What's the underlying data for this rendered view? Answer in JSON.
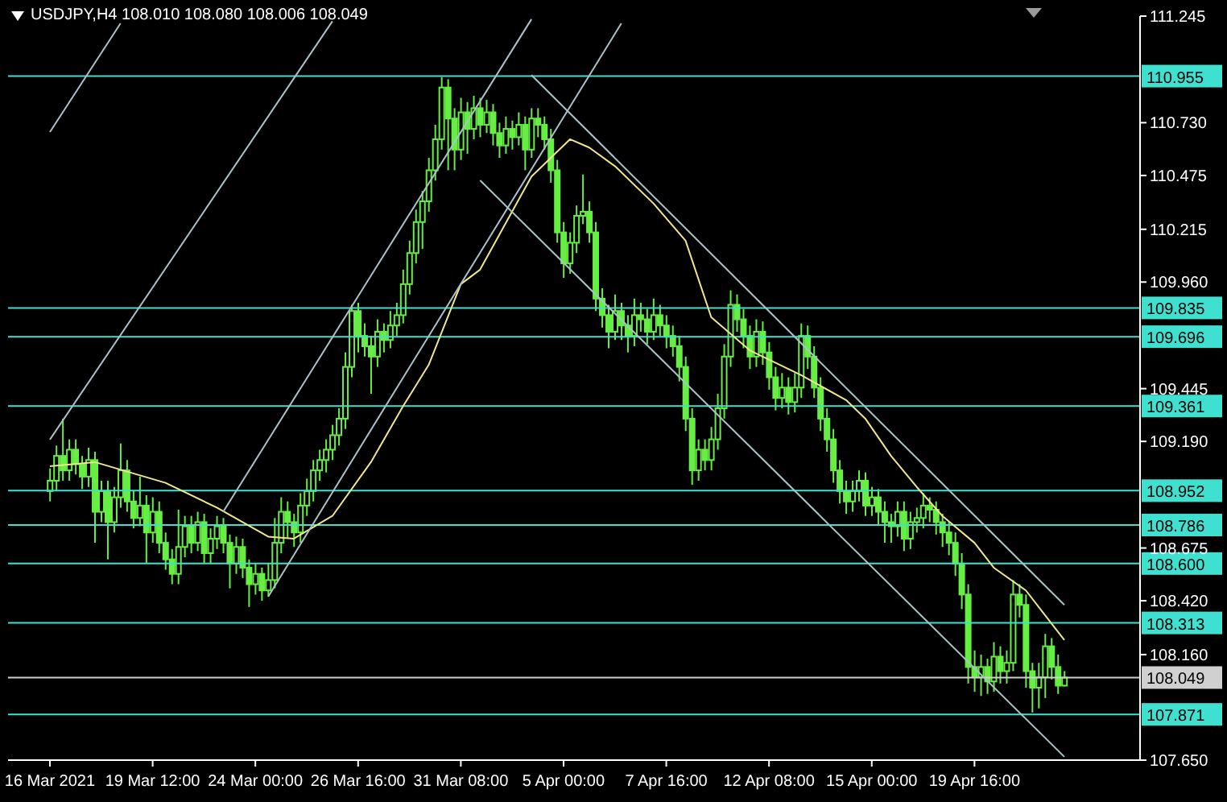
{
  "chart_data": {
    "type": "candlestick",
    "title": "USDJPY,H4 108.010 108.080 108.006 108.049",
    "categories": [
      "16 Mar 2021",
      null,
      null,
      null,
      null,
      null,
      null,
      null,
      null,
      null,
      null,
      null,
      null,
      null,
      null,
      null,
      "19 Mar 12:00",
      null,
      null,
      null,
      null,
      null,
      null,
      null,
      null,
      null,
      null,
      null,
      null,
      null,
      null,
      null,
      "24 Mar 00:00",
      null,
      null,
      null,
      null,
      null,
      null,
      null,
      null,
      null,
      null,
      null,
      null,
      null,
      null,
      null,
      "26 Mar 16:00",
      null,
      null,
      null,
      null,
      null,
      null,
      null,
      null,
      null,
      null,
      null,
      null,
      null,
      null,
      null,
      "31 Mar 08:00",
      null,
      null,
      null,
      null,
      null,
      null,
      null,
      null,
      null,
      null,
      null,
      null,
      null,
      null,
      null,
      "5 Apr 00:00",
      null,
      null,
      null,
      null,
      null,
      null,
      null,
      null,
      null,
      null,
      null,
      null,
      null,
      null,
      null,
      "7 Apr 16:00",
      null,
      null,
      null,
      null,
      null,
      null,
      null,
      null,
      null,
      null,
      null,
      null,
      null,
      null,
      null,
      "12 Apr 08:00",
      null,
      null,
      null,
      null,
      null,
      null,
      null,
      null,
      null,
      null,
      null,
      null,
      null,
      null,
      null,
      "15 Apr 00:00",
      null,
      null,
      null,
      null,
      null,
      null,
      null,
      null,
      null,
      null,
      null,
      null,
      null,
      null,
      null,
      "19 Apr 16:00",
      null,
      null,
      null,
      null,
      null,
      null,
      null,
      null,
      null,
      null,
      null,
      null,
      null,
      null
    ],
    "ylim": [
      107.65,
      111.245
    ],
    "yticks": [
      {
        "value": 107.65,
        "label": "107.650"
      },
      {
        "value": 108.16,
        "label": "108.160"
      },
      {
        "value": 108.42,
        "label": "108.420"
      },
      108.675,
      {
        "value": 109.19,
        "label": "109.190"
      },
      109.445,
      {
        "value": 109.96,
        "label": "109.960"
      },
      110.215,
      110.475,
      {
        "value": 110.73,
        "label": "110.730"
      },
      111.245
    ],
    "ref_lines": [
      {
        "axis": "y",
        "value": 110.955,
        "label": "110.955",
        "color": "#40e0d0"
      },
      {
        "axis": "y",
        "value": 109.835,
        "label": "109.835",
        "color": "#40e0d0"
      },
      {
        "axis": "y",
        "value": 109.696,
        "label": "109.696",
        "color": "#40e0d0"
      },
      {
        "axis": "y",
        "value": 109.361,
        "label": "109.361",
        "color": "#40e0d0"
      },
      {
        "axis": "y",
        "value": 108.952,
        "label": "108.952",
        "color": "#40e0d0"
      },
      {
        "axis": "y",
        "value": 108.786,
        "label": "108.786",
        "color": "#40e0d0"
      },
      {
        "axis": "y",
        "value": 108.6,
        "label": "108.600",
        "color": "#40e0d0"
      },
      {
        "axis": "y",
        "value": 108.313,
        "label": "108.313",
        "color": "#40e0d0"
      },
      {
        "axis": "y",
        "value": 108.049,
        "label": "108.049",
        "color": "#d0d0d0"
      },
      {
        "axis": "y",
        "value": 107.871,
        "label": "107.871",
        "color": "#40e0d0"
      }
    ],
    "series": [
      {
        "type": "line",
        "color": "#f0e68c",
        "values": [
          109.07,
          null,
          null,
          null,
          null,
          null,
          null,
          109.09,
          null,
          null,
          null,
          null,
          null,
          null,
          null,
          null,
          null,
          null,
          108.99,
          null,
          null,
          null,
          null,
          null,
          null,
          null,
          108.87,
          null,
          null,
          null,
          null,
          null,
          null,
          null,
          108.73,
          null,
          null,
          null,
          108.72,
          null,
          null,
          null,
          null,
          null,
          108.83,
          null,
          null,
          null,
          null,
          null,
          109.09,
          null,
          null,
          null,
          null,
          109.36,
          null,
          null,
          null,
          109.56,
          null,
          null,
          null,
          null,
          109.95,
          null,
          null,
          110.02,
          null,
          null,
          null,
          null,
          null,
          null,
          null,
          110.47,
          null,
          null,
          null,
          null,
          null,
          110.65,
          null,
          null,
          110.61,
          null,
          null,
          null,
          110.52,
          null,
          null,
          null,
          null,
          null,
          110.34,
          null,
          null,
          null,
          null,
          110.16,
          null,
          null,
          null,
          109.79,
          null,
          null,
          null,
          null,
          null,
          109.63,
          null,
          null,
          null,
          null,
          null,
          null,
          null,
          109.51,
          null,
          null,
          null,
          null,
          null,
          null,
          109.39,
          null,
          null,
          109.3,
          null,
          null,
          null,
          109.12,
          null,
          null,
          null,
          108.97,
          null,
          null,
          null,
          108.83,
          null,
          null,
          null,
          null,
          108.7,
          null,
          null,
          108.58,
          null,
          null,
          null,
          null,
          108.47,
          null,
          null,
          null,
          null,
          null,
          108.23
        ]
      },
      {
        "type": "line",
        "color": "#a9c3c8",
        "values": [
          110.685,
          null,
          null,
          null,
          null,
          null,
          null,
          null,
          null,
          null,
          null,
          111.21,
          null,
          null,
          null,
          null,
          null,
          null,
          null,
          null,
          null,
          null,
          null,
          null,
          null,
          null,
          null,
          null,
          null,
          null,
          null,
          null,
          null,
          null,
          null,
          null,
          null,
          null,
          null,
          null,
          null,
          null,
          null,
          null,
          null,
          null,
          null,
          null,
          null,
          null,
          null,
          null,
          null,
          null,
          null,
          null,
          null,
          null,
          null,
          null,
          null,
          null,
          null,
          null,
          null,
          null,
          null,
          null,
          null,
          null,
          null,
          null,
          null,
          null,
          null,
          null,
          null,
          null,
          null,
          null,
          null,
          null,
          null,
          null,
          null,
          null,
          null,
          null,
          null,
          null,
          null,
          null,
          null,
          null,
          null,
          null,
          null,
          null,
          null,
          null,
          null,
          null,
          null,
          null,
          null,
          null,
          null,
          null,
          null,
          null,
          null,
          null,
          null,
          null,
          null,
          null,
          null,
          null,
          null,
          null,
          null,
          null,
          null,
          null,
          null,
          null,
          null,
          null,
          null,
          null,
          null,
          null,
          null,
          null,
          null,
          null,
          null,
          null,
          null,
          null,
          null,
          null,
          null,
          null,
          null,
          null,
          null,
          null,
          null,
          null,
          null,
          null,
          null,
          null,
          null,
          null,
          null,
          null,
          null
        ]
      },
      {
        "type": "line",
        "color": "#a9c3c8",
        "values": [
          109.199,
          null,
          null,
          null,
          null,
          null,
          null,
          null,
          null,
          null,
          null,
          null,
          null,
          null,
          null,
          null,
          null,
          null,
          null,
          null,
          null,
          null,
          null,
          null,
          null,
          null,
          null,
          null,
          null,
          null,
          null,
          null,
          null,
          null,
          null,
          null,
          null,
          null,
          null,
          null,
          null,
          null,
          null,
          null,
          111.22,
          null,
          null,
          null,
          null,
          null,
          null,
          null,
          null,
          null,
          null,
          null,
          null,
          null,
          null,
          null,
          null,
          null,
          null,
          null,
          null,
          null,
          null,
          null,
          null,
          null,
          null,
          null,
          null,
          null,
          null,
          null,
          null,
          null,
          null,
          null,
          null,
          null,
          null,
          null,
          null,
          null,
          null,
          null,
          null,
          null,
          null,
          null,
          null,
          null,
          null,
          null,
          null,
          null,
          null,
          null,
          null,
          null,
          null,
          null,
          null,
          null,
          null,
          null,
          null,
          null,
          null,
          null,
          null,
          null,
          null,
          null,
          null,
          null,
          null,
          null,
          null,
          null,
          null,
          null,
          null,
          null,
          null,
          null,
          null,
          null,
          null,
          null,
          null,
          null,
          null,
          null,
          null,
          null,
          null,
          null,
          null,
          null,
          null,
          null,
          null,
          null,
          null,
          null,
          null,
          null,
          null,
          null,
          null,
          null,
          null,
          null,
          null,
          null,
          null
        ]
      },
      {
        "type": "line",
        "color": "#a9c3c8",
        "values": [
          null,
          null,
          null,
          null,
          null,
          null,
          null,
          null,
          null,
          null,
          null,
          null,
          null,
          null,
          null,
          null,
          null,
          null,
          null,
          null,
          null,
          null,
          null,
          null,
          null,
          null,
          null,
          108.85,
          null,
          null,
          null,
          null,
          null,
          null,
          null,
          null,
          null,
          null,
          null,
          null,
          null,
          null,
          null,
          null,
          null,
          null,
          null,
          null,
          null,
          null,
          null,
          null,
          null,
          null,
          null,
          null,
          null,
          null,
          null,
          null,
          null,
          null,
          null,
          null,
          null,
          null,
          null,
          null,
          null,
          null,
          null,
          null,
          null,
          null,
          null,
          111.23,
          null,
          null,
          null,
          null,
          null,
          null,
          null,
          null,
          null,
          null,
          null,
          null,
          null,
          null,
          null,
          null,
          null,
          null,
          null,
          null,
          null,
          null,
          null,
          null,
          null,
          null,
          null,
          null,
          null,
          null,
          null,
          null,
          null,
          null,
          null,
          null,
          null,
          null,
          null,
          null,
          null,
          null,
          null,
          null,
          null,
          null,
          null,
          null,
          null,
          null,
          null,
          null,
          null,
          null,
          null,
          null,
          null,
          null,
          null,
          null,
          null,
          null,
          null,
          null,
          null,
          null,
          null,
          null,
          null,
          null,
          null,
          null,
          null,
          null,
          null,
          null,
          null,
          null,
          null,
          null,
          null,
          null,
          null
        ]
      },
      {
        "type": "line",
        "color": "#a9c3c8",
        "values": [
          null,
          null,
          null,
          null,
          null,
          null,
          null,
          null,
          null,
          null,
          null,
          null,
          null,
          null,
          null,
          null,
          null,
          null,
          null,
          null,
          null,
          null,
          null,
          null,
          null,
          null,
          null,
          null,
          null,
          null,
          null,
          null,
          null,
          null,
          108.44,
          null,
          null,
          null,
          null,
          null,
          null,
          null,
          null,
          null,
          null,
          null,
          null,
          null,
          null,
          null,
          null,
          null,
          null,
          null,
          null,
          null,
          null,
          null,
          null,
          null,
          null,
          null,
          null,
          null,
          null,
          null,
          null,
          null,
          null,
          null,
          null,
          null,
          null,
          null,
          null,
          null,
          null,
          null,
          null,
          null,
          null,
          null,
          null,
          null,
          null,
          null,
          null,
          null,
          null,
          111.21,
          null,
          null,
          null,
          null,
          null,
          null,
          null,
          null,
          null,
          null,
          null,
          null,
          null,
          null,
          null,
          null,
          null,
          null,
          null,
          null,
          null,
          null,
          null,
          null,
          null,
          null,
          null,
          null,
          null,
          null,
          null,
          null,
          null,
          null,
          null,
          null,
          null,
          null,
          null,
          null,
          null,
          null,
          null,
          null,
          null,
          null,
          null,
          null,
          null,
          null,
          null,
          null,
          null,
          null,
          null,
          null,
          null,
          null,
          null,
          null,
          null,
          null,
          null,
          null,
          null,
          null,
          null,
          null,
          null
        ]
      },
      {
        "type": "line",
        "color": "#a9c3c8",
        "values": [
          null,
          null,
          null,
          null,
          null,
          null,
          null,
          null,
          null,
          null,
          null,
          null,
          null,
          null,
          null,
          null,
          null,
          null,
          null,
          null,
          null,
          null,
          null,
          null,
          null,
          null,
          null,
          null,
          null,
          null,
          null,
          null,
          null,
          null,
          null,
          null,
          null,
          null,
          null,
          null,
          null,
          null,
          null,
          null,
          null,
          null,
          null,
          null,
          null,
          null,
          null,
          null,
          null,
          null,
          null,
          null,
          null,
          null,
          null,
          null,
          null,
          null,
          null,
          null,
          null,
          null,
          null,
          null,
          null,
          null,
          null,
          null,
          null,
          null,
          null,
          110.96,
          null,
          null,
          null,
          null,
          null,
          null,
          null,
          null,
          null,
          null,
          null,
          null,
          null,
          null,
          null,
          null,
          null,
          null,
          null,
          null,
          null,
          null,
          null,
          null,
          null,
          null,
          null,
          null,
          null,
          null,
          null,
          null,
          null,
          null,
          null,
          null,
          null,
          null,
          null,
          null,
          null,
          null,
          null,
          null,
          null,
          null,
          null,
          null,
          null,
          null,
          null,
          null,
          null,
          null,
          null,
          null,
          null,
          null,
          null,
          null,
          null,
          null,
          null,
          null,
          null,
          null,
          null,
          null,
          null,
          null,
          null,
          null,
          null,
          null,
          null,
          null,
          null,
          null,
          null,
          null,
          null,
          null,
          108.4
        ]
      },
      {
        "type": "line",
        "color": "#a9c3c8",
        "values": [
          null,
          null,
          null,
          null,
          null,
          null,
          null,
          null,
          null,
          null,
          null,
          null,
          null,
          null,
          null,
          null,
          null,
          null,
          null,
          null,
          null,
          null,
          null,
          null,
          null,
          null,
          null,
          null,
          null,
          null,
          null,
          null,
          null,
          null,
          null,
          null,
          null,
          null,
          null,
          null,
          null,
          null,
          null,
          null,
          null,
          null,
          null,
          null,
          null,
          null,
          null,
          null,
          null,
          null,
          null,
          null,
          null,
          null,
          null,
          null,
          null,
          null,
          null,
          null,
          null,
          null,
          null,
          110.451,
          null,
          null,
          null,
          null,
          null,
          null,
          null,
          null,
          null,
          null,
          null,
          null,
          null,
          null,
          null,
          null,
          null,
          null,
          null,
          null,
          null,
          null,
          null,
          null,
          null,
          null,
          null,
          null,
          null,
          null,
          null,
          null,
          null,
          null,
          null,
          null,
          null,
          null,
          null,
          null,
          null,
          null,
          null,
          null,
          null,
          null,
          null,
          null,
          null,
          null,
          null,
          null,
          null,
          null,
          null,
          null,
          null,
          null,
          null,
          null,
          null,
          null,
          null,
          null,
          null,
          null,
          null,
          null,
          null,
          null,
          null,
          null,
          null,
          null,
          null,
          null,
          null,
          null,
          null,
          null,
          null,
          null,
          null,
          null,
          null,
          null,
          null,
          null,
          null,
          null,
          107.666
        ]
      },
      {
        "type": "candlestick",
        "color": "#66ee44",
        "ohlc": [
          [
            108.95,
            109.06,
            108.9,
            109.0
          ],
          [
            109.0,
            109.17,
            108.95,
            109.12
          ],
          [
            109.12,
            109.3,
            109.0,
            109.05
          ],
          [
            109.05,
            109.2,
            109.0,
            109.15
          ],
          [
            109.15,
            109.2,
            109.03,
            109.08
          ],
          [
            109.08,
            109.12,
            108.96,
            109.02
          ],
          [
            109.02,
            109.16,
            108.97,
            109.1
          ],
          [
            109.1,
            109.14,
            108.7,
            108.85
          ],
          [
            108.85,
            109.0,
            108.8,
            108.95
          ],
          [
            108.95,
            109.0,
            108.62,
            108.8
          ],
          [
            108.8,
            108.97,
            108.75,
            108.92
          ],
          [
            108.92,
            109.18,
            108.87,
            109.05
          ],
          [
            109.05,
            109.1,
            108.85,
            108.9
          ],
          [
            108.9,
            108.95,
            108.77,
            108.82
          ],
          [
            108.82,
            109.02,
            108.78,
            108.88
          ],
          [
            108.88,
            108.93,
            108.6,
            108.75
          ],
          [
            108.75,
            108.92,
            108.7,
            108.85
          ],
          [
            108.85,
            108.9,
            108.65,
            108.7
          ],
          [
            108.7,
            108.75,
            108.57,
            108.62
          ],
          [
            108.62,
            108.67,
            108.5,
            108.55
          ],
          [
            108.55,
            108.86,
            108.5,
            108.68
          ],
          [
            108.68,
            108.83,
            108.63,
            108.78
          ],
          [
            108.78,
            108.83,
            108.65,
            108.7
          ],
          [
            108.7,
            108.85,
            108.66,
            108.8
          ],
          [
            108.8,
            108.84,
            108.6,
            108.65
          ],
          [
            108.65,
            108.77,
            108.6,
            108.72
          ],
          [
            108.72,
            108.83,
            108.67,
            108.78
          ],
          [
            108.78,
            108.82,
            108.65,
            108.7
          ],
          [
            108.7,
            108.74,
            108.48,
            108.6
          ],
          [
            108.6,
            108.73,
            108.55,
            108.68
          ],
          [
            108.68,
            108.72,
            108.53,
            108.58
          ],
          [
            108.58,
            108.62,
            108.39,
            108.5
          ],
          [
            108.5,
            108.6,
            108.45,
            108.55
          ],
          [
            108.55,
            108.58,
            108.42,
            108.47
          ],
          [
            108.47,
            108.6,
            108.44,
            108.52
          ],
          [
            108.52,
            108.82,
            108.48,
            108.7
          ],
          [
            108.7,
            108.92,
            108.65,
            108.85
          ],
          [
            108.85,
            108.9,
            108.72,
            108.8
          ],
          [
            108.8,
            108.84,
            108.68,
            108.75
          ],
          [
            108.75,
            108.94,
            108.7,
            108.88
          ],
          [
            108.88,
            109.01,
            108.83,
            108.95
          ],
          [
            108.95,
            109.1,
            108.9,
            109.05
          ],
          [
            109.05,
            109.15,
            109.0,
            109.1
          ],
          [
            109.1,
            109.2,
            109.04,
            109.15
          ],
          [
            109.15,
            109.27,
            109.1,
            109.22
          ],
          [
            109.22,
            109.35,
            109.17,
            109.3
          ],
          [
            109.3,
            109.62,
            109.25,
            109.55
          ],
          [
            109.55,
            109.85,
            109.5,
            109.82
          ],
          [
            109.82,
            109.86,
            109.62,
            109.7
          ],
          [
            109.7,
            109.76,
            109.6,
            109.65
          ],
          [
            109.65,
            109.7,
            109.42,
            109.6
          ],
          [
            109.6,
            109.78,
            109.55,
            109.72
          ],
          [
            109.72,
            109.76,
            109.62,
            109.68
          ],
          [
            109.68,
            109.82,
            109.64,
            109.75
          ],
          [
            109.75,
            109.86,
            109.7,
            109.8
          ],
          [
            109.8,
            110.02,
            109.76,
            109.95
          ],
          [
            109.95,
            110.16,
            109.9,
            110.1
          ],
          [
            110.1,
            110.31,
            110.05,
            110.25
          ],
          [
            110.25,
            110.4,
            110.12,
            110.35
          ],
          [
            110.35,
            110.56,
            110.3,
            110.5
          ],
          [
            110.5,
            110.72,
            110.45,
            110.65
          ],
          [
            110.65,
            110.95,
            110.6,
            110.9
          ],
          [
            110.9,
            110.94,
            110.5,
            110.75
          ],
          [
            110.75,
            110.8,
            110.5,
            110.6
          ],
          [
            110.6,
            110.85,
            110.55,
            110.78
          ],
          [
            110.78,
            110.83,
            110.58,
            110.7
          ],
          [
            110.7,
            110.86,
            110.65,
            110.8
          ],
          [
            110.8,
            110.85,
            110.66,
            110.72
          ],
          [
            110.72,
            110.84,
            110.68,
            110.78
          ],
          [
            110.78,
            110.82,
            110.62,
            110.68
          ],
          [
            110.68,
            110.73,
            110.56,
            110.62
          ],
          [
            110.62,
            110.76,
            110.58,
            110.7
          ],
          [
            110.7,
            110.74,
            110.6,
            110.66
          ],
          [
            110.66,
            110.78,
            110.62,
            110.72
          ],
          [
            110.72,
            110.76,
            110.5,
            110.6
          ],
          [
            110.6,
            110.8,
            110.56,
            110.75
          ],
          [
            110.75,
            110.8,
            110.66,
            110.72
          ],
          [
            110.72,
            110.76,
            110.6,
            110.65
          ],
          [
            110.65,
            110.7,
            110.44,
            110.5
          ],
          [
            110.5,
            110.55,
            110.15,
            110.2
          ],
          [
            110.2,
            110.25,
            109.98,
            110.05
          ],
          [
            110.05,
            110.2,
            110.0,
            110.15
          ],
          [
            110.15,
            110.33,
            110.1,
            110.28
          ],
          [
            110.28,
            110.48,
            110.24,
            110.3
          ],
          [
            110.3,
            110.35,
            110.15,
            110.2
          ],
          [
            110.2,
            110.25,
            109.82,
            109.88
          ],
          [
            109.88,
            109.93,
            109.74,
            109.8
          ],
          [
            109.8,
            109.85,
            109.64,
            109.72
          ],
          [
            109.72,
            109.9,
            109.68,
            109.82
          ],
          [
            109.82,
            109.86,
            109.68,
            109.75
          ],
          [
            109.75,
            109.8,
            109.62,
            109.7
          ],
          [
            109.7,
            109.88,
            109.65,
            109.8
          ],
          [
            109.8,
            109.86,
            109.72,
            109.78
          ],
          [
            109.78,
            109.83,
            109.66,
            109.72
          ],
          [
            109.72,
            109.88,
            109.68,
            109.8
          ],
          [
            109.8,
            109.85,
            109.7,
            109.75
          ],
          [
            109.75,
            109.8,
            109.64,
            109.7
          ],
          [
            109.7,
            109.75,
            109.6,
            109.65
          ],
          [
            109.65,
            109.7,
            109.48,
            109.55
          ],
          [
            109.55,
            109.6,
            109.24,
            109.3
          ],
          [
            109.3,
            109.35,
            108.98,
            109.05
          ],
          [
            109.05,
            109.2,
            109.0,
            109.15
          ],
          [
            109.15,
            109.2,
            109.05,
            109.1
          ],
          [
            109.1,
            109.26,
            109.05,
            109.2
          ],
          [
            109.2,
            109.42,
            109.15,
            109.35
          ],
          [
            109.35,
            109.66,
            109.3,
            109.6
          ],
          [
            109.6,
            109.92,
            109.55,
            109.85
          ],
          [
            109.85,
            109.9,
            109.72,
            109.78
          ],
          [
            109.78,
            109.83,
            109.64,
            109.7
          ],
          [
            109.7,
            109.75,
            109.54,
            109.6
          ],
          [
            109.6,
            109.78,
            109.55,
            109.72
          ],
          [
            109.72,
            109.77,
            109.56,
            109.62
          ],
          [
            109.62,
            109.67,
            109.44,
            109.5
          ],
          [
            109.5,
            109.55,
            109.34,
            109.4
          ],
          [
            109.4,
            109.52,
            109.35,
            109.45
          ],
          [
            109.45,
            109.5,
            109.32,
            109.38
          ],
          [
            109.38,
            109.52,
            109.33,
            109.45
          ],
          [
            109.45,
            109.76,
            109.4,
            109.7
          ],
          [
            109.7,
            109.75,
            109.54,
            109.6
          ],
          [
            109.6,
            109.65,
            109.4,
            109.45
          ],
          [
            109.45,
            109.5,
            109.24,
            109.3
          ],
          [
            109.3,
            109.35,
            109.14,
            109.2
          ],
          [
            109.2,
            109.25,
            108.99,
            109.05
          ],
          [
            109.05,
            109.1,
            108.89,
            108.95
          ],
          [
            108.95,
            109.0,
            108.84,
            108.9
          ],
          [
            108.9,
            109.0,
            108.85,
            108.95
          ],
          [
            108.95,
            109.05,
            108.9,
            109.0
          ],
          [
            109.0,
            109.04,
            108.83,
            108.88
          ],
          [
            108.88,
            108.97,
            108.83,
            108.92
          ],
          [
            108.92,
            108.96,
            108.79,
            108.85
          ],
          [
            108.85,
            108.9,
            108.7,
            108.8
          ],
          [
            108.8,
            108.84,
            108.7,
            108.78
          ],
          [
            108.78,
            108.9,
            108.73,
            108.85
          ],
          [
            108.85,
            108.9,
            108.66,
            108.72
          ],
          [
            108.72,
            108.85,
            108.67,
            108.8
          ],
          [
            108.8,
            108.87,
            108.75,
            108.82
          ],
          [
            108.82,
            108.94,
            108.77,
            108.88
          ],
          [
            108.88,
            108.92,
            108.8,
            108.86
          ],
          [
            108.86,
            108.9,
            108.74,
            108.8
          ],
          [
            108.8,
            108.84,
            108.68,
            108.75
          ],
          [
            108.75,
            108.8,
            108.64,
            108.7
          ],
          [
            108.7,
            108.75,
            108.54,
            108.6
          ],
          [
            108.6,
            108.65,
            108.38,
            108.45
          ],
          [
            108.45,
            108.5,
            108.02,
            108.1
          ],
          [
            108.1,
            108.18,
            107.98,
            108.05
          ],
          [
            108.05,
            108.16,
            107.96,
            108.1
          ],
          [
            108.1,
            108.14,
            107.97,
            108.03
          ],
          [
            108.03,
            108.22,
            107.98,
            108.15
          ],
          [
            108.15,
            108.2,
            108.02,
            108.08
          ],
          [
            108.08,
            108.18,
            108.02,
            108.12
          ],
          [
            108.12,
            108.52,
            108.08,
            108.45
          ],
          [
            108.45,
            108.5,
            108.34,
            108.4
          ],
          [
            108.4,
            108.45,
            108.0,
            108.08
          ],
          [
            108.08,
            108.12,
            107.88,
            108.0
          ],
          [
            108.0,
            108.12,
            107.9,
            108.05
          ],
          [
            108.05,
            108.26,
            107.95,
            108.2
          ],
          [
            108.2,
            108.24,
            108.04,
            108.1
          ],
          [
            108.1,
            108.16,
            107.97,
            108.01
          ],
          [
            108.01,
            108.08,
            108.006,
            108.049
          ]
        ]
      }
    ]
  }
}
